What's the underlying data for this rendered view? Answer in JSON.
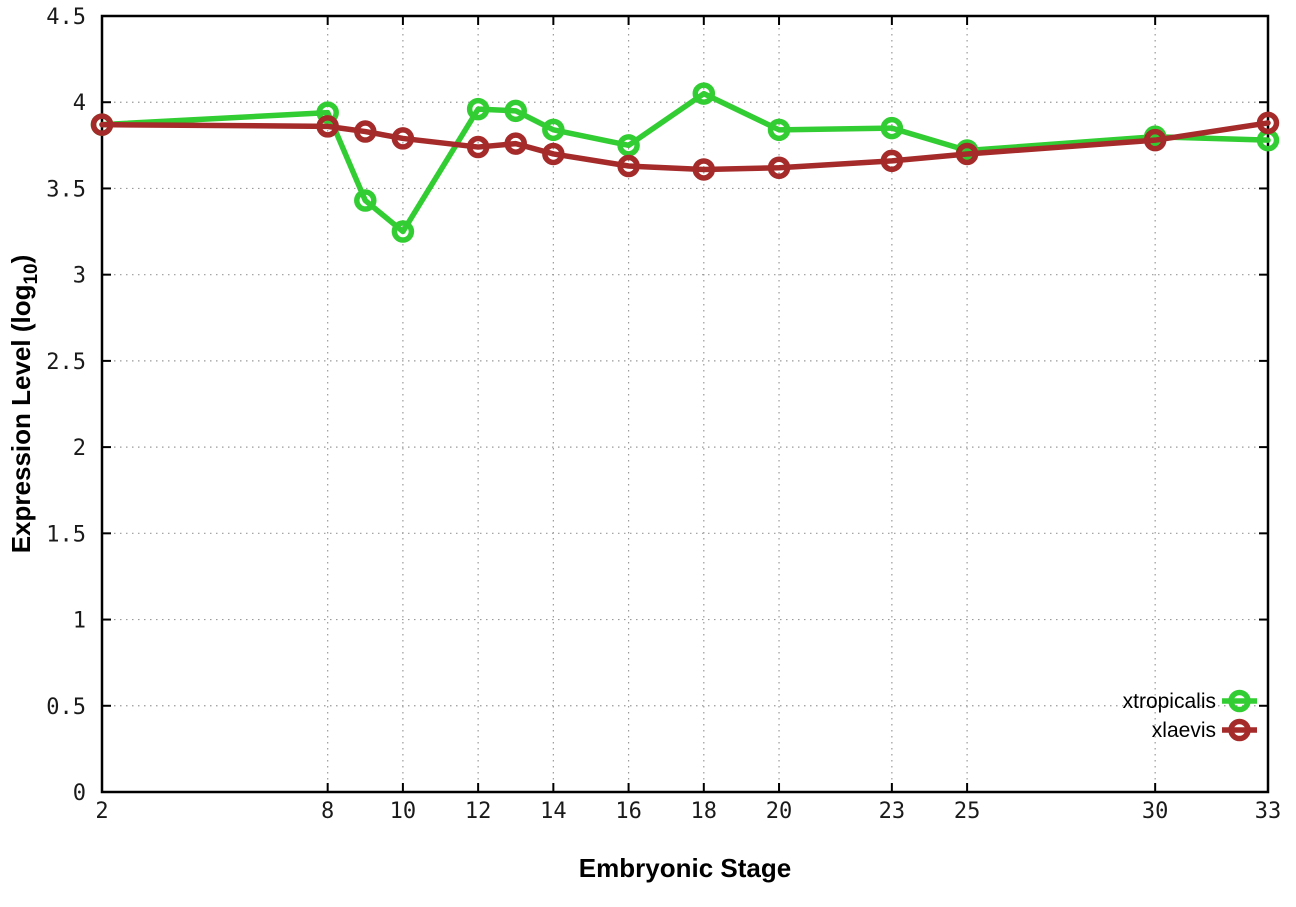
{
  "chart_data": {
    "type": "line",
    "title": "",
    "xlabel": "Embryonic Stage",
    "ylabel": "Expression Level (log10)",
    "ylabel_prefix": "Expression Level (log",
    "ylabel_sub": "10",
    "ylabel_suffix": ")",
    "x": [
      2,
      8,
      9,
      10,
      12,
      13,
      14,
      16,
      18,
      20,
      23,
      25,
      30,
      33
    ],
    "x_ticks": [
      2,
      8,
      10,
      12,
      14,
      16,
      18,
      20,
      23,
      25,
      30,
      33
    ],
    "x_tick_labels": [
      "2",
      "8",
      "10",
      "12",
      "14",
      "16",
      "18",
      "20",
      "23",
      "25",
      "30",
      "33"
    ],
    "y_ticks": [
      0,
      0.5,
      1,
      1.5,
      2,
      2.5,
      3,
      3.5,
      4,
      4.5
    ],
    "y_tick_labels": [
      "0",
      "0.5",
      "1",
      "1.5",
      "2",
      "2.5",
      "3",
      "3.5",
      "4",
      "4.5"
    ],
    "xlim": [
      2,
      33
    ],
    "ylim": [
      0,
      4.5
    ],
    "grid": true,
    "grid_style": "dotted",
    "legend_position": "bottom-right-inside",
    "point_style": "open-circle",
    "series": [
      {
        "name": "xtropicalis",
        "color": "#32cd32",
        "values": [
          3.87,
          3.94,
          3.43,
          3.25,
          3.96,
          3.95,
          3.84,
          3.75,
          4.05,
          3.84,
          3.85,
          3.72,
          3.8,
          3.78
        ]
      },
      {
        "name": "xlaevis",
        "color": "#a52a2a",
        "values": [
          3.87,
          3.86,
          3.83,
          3.79,
          3.74,
          3.76,
          3.7,
          3.63,
          3.61,
          3.62,
          3.66,
          3.7,
          3.78,
          3.88
        ]
      }
    ],
    "colors": {
      "axis": "#000000",
      "grid": "#9a9a9a",
      "tick_text": "#1a1a1a",
      "background": "#ffffff"
    }
  }
}
